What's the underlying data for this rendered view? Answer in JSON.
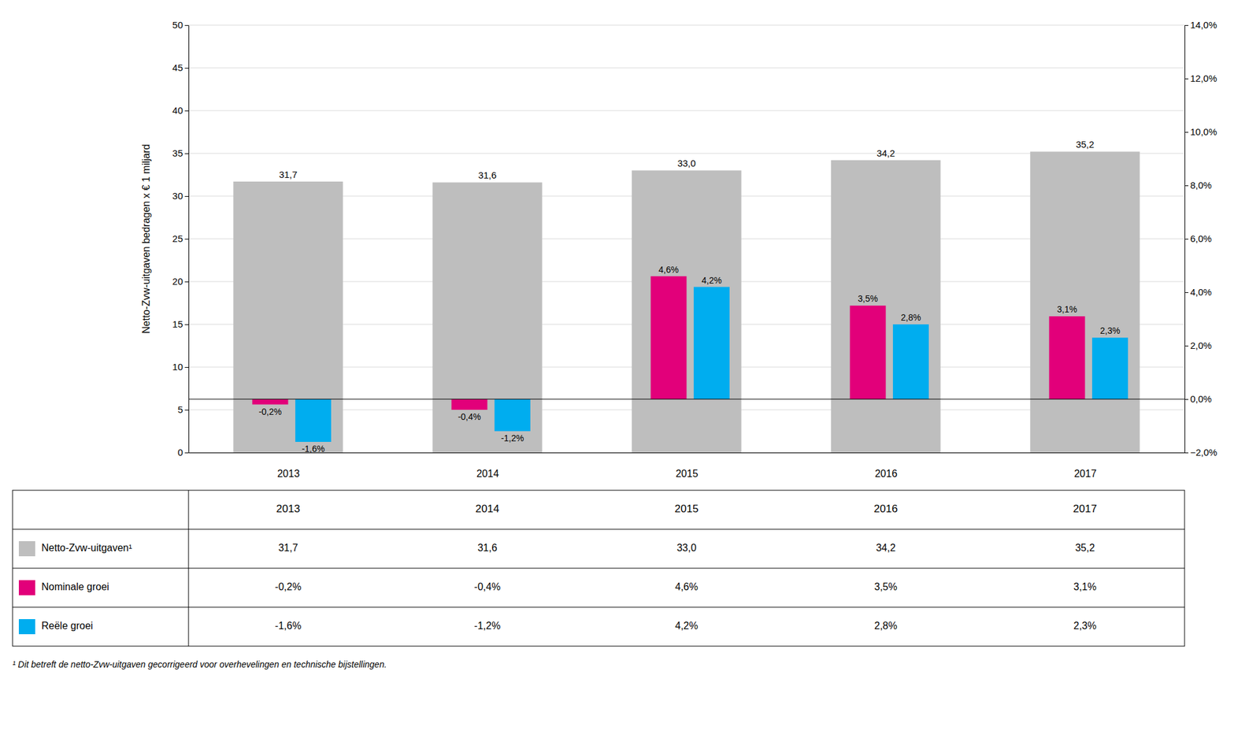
{
  "chart_data": {
    "type": "bar",
    "y_label": "Netto-Zvw-uitgaven bedragen x € 1 miljard",
    "categories": [
      "2013",
      "2014",
      "2015",
      "2016",
      "2017"
    ],
    "series": [
      {
        "name": "Netto-Zvw-uitgaven¹",
        "color": "#BEBEBE",
        "values": [
          31.7,
          31.6,
          33.0,
          34.2,
          35.2
        ],
        "value_labels": [
          "31,7",
          "31,6",
          "33,0",
          "34,2",
          "35,2"
        ]
      },
      {
        "name": "Nominale groei",
        "color": "#E2007A",
        "axis": "y2",
        "values": [
          -0.002,
          -0.004,
          0.046,
          0.035,
          0.031
        ],
        "value_labels": [
          "-0,2%",
          "-0,4%",
          "4,6%",
          "3,5%",
          "3,1%"
        ]
      },
      {
        "name": "Reële groei",
        "color": "#00ADEF",
        "axis": "y2",
        "values": [
          -0.016,
          -0.012,
          0.042,
          0.028,
          0.023
        ],
        "value_labels": [
          "-1,6%",
          "-1,2%",
          "4,2%",
          "2,8%",
          "2,3%"
        ]
      }
    ],
    "ylim": [
      0,
      50
    ],
    "yticks": [
      0,
      5,
      10,
      15,
      20,
      25,
      30,
      35,
      40,
      45,
      50
    ],
    "y2lim": [
      -0.02,
      0.14
    ],
    "y2ticks": [
      {
        "value": -0.02,
        "label": "−2,0%"
      },
      {
        "value": 0,
        "label": "0,0%"
      },
      {
        "value": 0.02,
        "label": "2,0%"
      },
      {
        "value": 0.04,
        "label": "4,0%"
      },
      {
        "value": 0.06,
        "label": "6,0%"
      },
      {
        "value": 0.08,
        "label": "8,0%"
      },
      {
        "value": 0.1,
        "label": "10,0%"
      },
      {
        "value": 0.12,
        "label": "12,0%"
      },
      {
        "value": 0.14,
        "label": "14,0%"
      }
    ],
    "grid": true,
    "data_labels": true,
    "annotations": [
      "¹ Dit betreft de netto-Zvw-uitgaven gecorrigeerd voor overhevelingen en technische bijstellingen."
    ]
  }
}
